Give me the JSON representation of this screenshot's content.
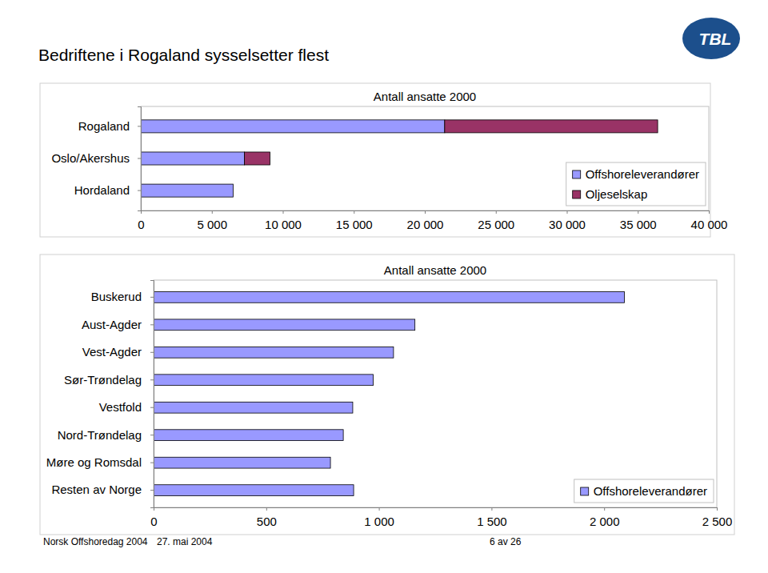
{
  "title": "Bedriftene i Rogaland sysselsetter flest",
  "logo": "TBL",
  "footer": [
    "Norsk Offshoredag 2004",
    "27. mai 2004",
    "6 av 26"
  ],
  "chart_data": [
    {
      "type": "bar",
      "title": "Antall ansatte 2000",
      "orientation": "horizontal",
      "stacked": true,
      "categories": [
        "Rogaland",
        "Oslo/Akershus",
        "Hordaland"
      ],
      "series": [
        {
          "name": "Offshoreleverandører",
          "color": "#9999ff",
          "values": [
            21400,
            7300,
            6500
          ]
        },
        {
          "name": "Oljeselskap",
          "color": "#993366",
          "values": [
            15000,
            1800,
            0
          ]
        }
      ],
      "xlim": [
        0,
        40000
      ],
      "xticks": [
        0,
        {
          "value": 5000,
          "label": "5 000"
        },
        {
          "value": 10000,
          "label": "10 000"
        },
        {
          "value": 15000,
          "label": "15 000"
        },
        {
          "value": 20000,
          "label": "20 000"
        },
        {
          "value": 25000,
          "label": "25 000"
        },
        {
          "value": 30000,
          "label": "30 000"
        },
        {
          "value": 35000,
          "label": "35 000"
        },
        {
          "value": 40000,
          "label": "40 000"
        }
      ],
      "legend": "lower right",
      "grid": false
    },
    {
      "type": "bar",
      "title": "Antall ansatte 2000",
      "orientation": "horizontal",
      "stacked": false,
      "categories": [
        "Buskerud",
        "Aust-Agder",
        "Vest-Agder",
        "Sør-Trøndelag",
        "Vestfold",
        "Nord-Trøndelag",
        "Møre og Romsdal",
        "Resten av Norge"
      ],
      "series": [
        {
          "name": "Offshoreleverandører",
          "color": "#9999ff",
          "values": [
            2090,
            1160,
            1065,
            975,
            884,
            842,
            785,
            888
          ]
        }
      ],
      "xlim": [
        0,
        2500
      ],
      "xticks": [
        0,
        500,
        {
          "value": 1000,
          "label": "1 000"
        },
        {
          "value": 1500,
          "label": "1 500"
        },
        {
          "value": 2000,
          "label": "2 000"
        },
        {
          "value": 2500,
          "label": "2 500"
        }
      ],
      "legend": "lower right",
      "grid": false
    }
  ]
}
